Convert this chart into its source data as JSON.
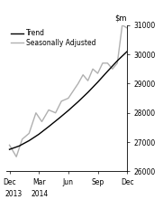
{
  "ylim": [
    26000,
    31000
  ],
  "yticks": [
    26000,
    27000,
    28000,
    29000,
    30000,
    31000
  ],
  "x_tick_labels": [
    "Dec",
    "Mar",
    "Jun",
    "Sep",
    "Dec"
  ],
  "trend_color": "#000000",
  "seasonal_color": "#b0b0b0",
  "legend_trend": "Trend",
  "legend_seasonal": "Seasonally Adjusted",
  "trend_x": [
    0,
    1,
    2,
    3,
    4,
    5,
    6,
    7,
    8,
    9,
    10,
    11,
    12
  ],
  "trend_y": [
    26750,
    26870,
    27050,
    27270,
    27530,
    27800,
    28080,
    28380,
    28700,
    29050,
    29420,
    29780,
    30100
  ],
  "seasonal_x": [
    0,
    0.7,
    1.3,
    2,
    2.7,
    3.3,
    4,
    4.7,
    5.3,
    6,
    6.5,
    7,
    7.5,
    8,
    8.5,
    9,
    9.5,
    10,
    10.5,
    11,
    11.5,
    12
  ],
  "seasonal_y": [
    26900,
    26500,
    27100,
    27300,
    28000,
    27700,
    28100,
    28000,
    28400,
    28500,
    28750,
    29000,
    29300,
    29100,
    29500,
    29350,
    29700,
    29700,
    29500,
    29700,
    31000,
    30900
  ]
}
